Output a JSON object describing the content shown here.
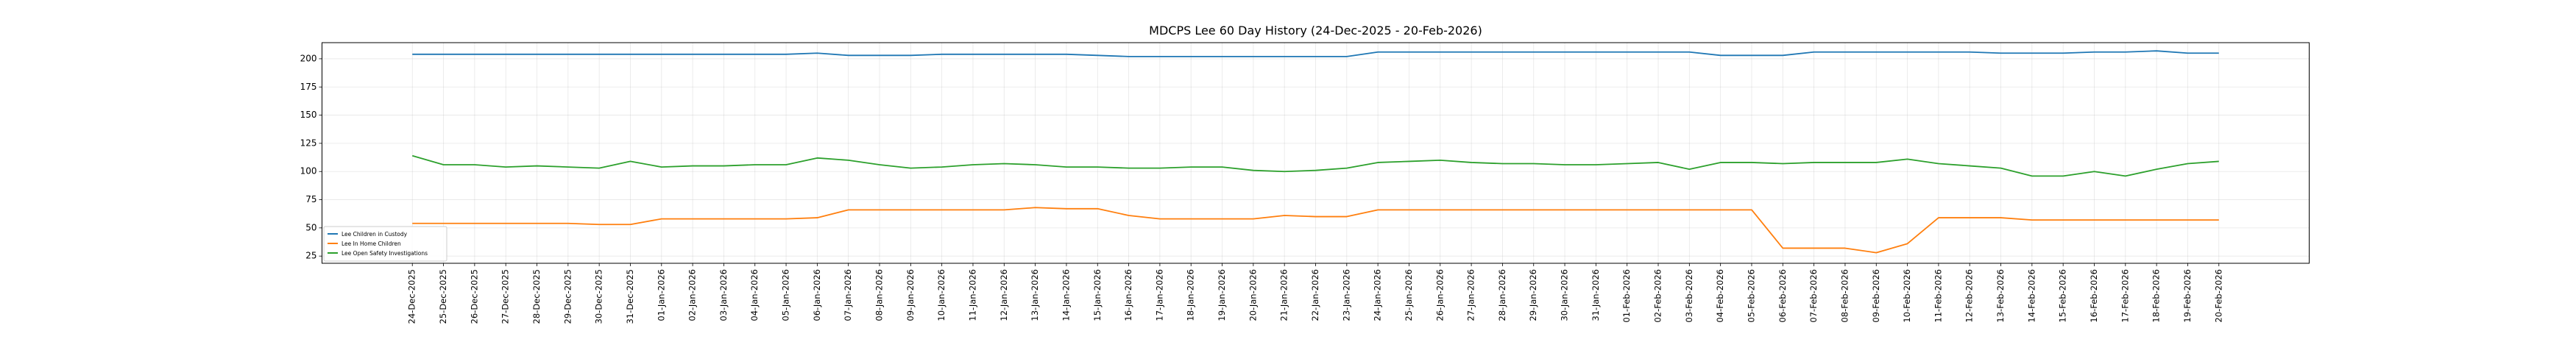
{
  "chart_data": {
    "type": "line",
    "title": "MDCPS Lee 60 Day History (24-Dec-2025 - 20-Feb-2026)",
    "xlabel": "",
    "ylabel": "",
    "ylim": [
      18.6,
      214.3
    ],
    "yticks": [
      25,
      50,
      75,
      100,
      125,
      150,
      175,
      200
    ],
    "grid": true,
    "legend_position": "lower-left",
    "x": [
      "24-Dec-2025",
      "25-Dec-2025",
      "26-Dec-2025",
      "27-Dec-2025",
      "28-Dec-2025",
      "29-Dec-2025",
      "30-Dec-2025",
      "31-Dec-2025",
      "01-Jan-2026",
      "02-Jan-2026",
      "03-Jan-2026",
      "04-Jan-2026",
      "05-Jan-2026",
      "06-Jan-2026",
      "07-Jan-2026",
      "08-Jan-2026",
      "09-Jan-2026",
      "10-Jan-2026",
      "11-Jan-2026",
      "12-Jan-2026",
      "13-Jan-2026",
      "14-Jan-2026",
      "15-Jan-2026",
      "16-Jan-2026",
      "17-Jan-2026",
      "18-Jan-2026",
      "19-Jan-2026",
      "20-Jan-2026",
      "21-Jan-2026",
      "22-Jan-2026",
      "23-Jan-2026",
      "24-Jan-2026",
      "25-Jan-2026",
      "26-Jan-2026",
      "27-Jan-2026",
      "28-Jan-2026",
      "29-Jan-2026",
      "30-Jan-2026",
      "31-Jan-2026",
      "01-Feb-2026",
      "02-Feb-2026",
      "03-Feb-2026",
      "04-Feb-2026",
      "05-Feb-2026",
      "06-Feb-2026",
      "07-Feb-2026",
      "08-Feb-2026",
      "09-Feb-2026",
      "10-Feb-2026",
      "11-Feb-2026",
      "12-Feb-2026",
      "13-Feb-2026",
      "14-Feb-2026",
      "15-Feb-2026",
      "16-Feb-2026",
      "17-Feb-2026",
      "18-Feb-2026",
      "19-Feb-2026",
      "20-Feb-2026"
    ],
    "series": [
      {
        "name": "Lee Children in Custody",
        "color": "#1f77b4",
        "values": [
          204,
          204,
          204,
          204,
          204,
          204,
          204,
          204,
          204,
          204,
          204,
          204,
          204,
          205,
          203,
          203,
          203,
          204,
          204,
          204,
          204,
          204,
          203,
          202,
          202,
          202,
          202,
          202,
          202,
          202,
          202,
          206,
          206,
          206,
          206,
          206,
          206,
          206,
          206,
          206,
          206,
          206,
          203,
          203,
          203,
          206,
          206,
          206,
          206,
          206,
          206,
          205,
          205,
          205,
          206,
          206,
          207,
          205,
          205
        ]
      },
      {
        "name": "Lee In Home Children",
        "color": "#ff7f0e",
        "values": [
          54,
          54,
          54,
          54,
          54,
          54,
          53,
          53,
          58,
          58,
          58,
          58,
          58,
          59,
          66,
          66,
          66,
          66,
          66,
          66,
          68,
          67,
          67,
          61,
          58,
          58,
          58,
          58,
          61,
          60,
          60,
          66,
          66,
          66,
          66,
          66,
          66,
          66,
          66,
          66,
          66,
          66,
          66,
          66,
          32,
          32,
          32,
          28,
          36,
          59,
          59,
          59,
          57,
          57,
          57,
          57,
          57,
          57,
          57
        ]
      },
      {
        "name": "Lee Open Safety Investigations",
        "color": "#2ca02c",
        "values": [
          114,
          106,
          106,
          104,
          105,
          104,
          103,
          109,
          104,
          105,
          105,
          106,
          106,
          112,
          110,
          106,
          103,
          104,
          106,
          107,
          106,
          104,
          104,
          103,
          103,
          104,
          104,
          101,
          100,
          101,
          103,
          108,
          109,
          110,
          108,
          107,
          107,
          106,
          106,
          107,
          108,
          102,
          108,
          108,
          107,
          108,
          108,
          108,
          111,
          107,
          105,
          103,
          96,
          96,
          100,
          96,
          102,
          107,
          109
        ]
      }
    ]
  }
}
